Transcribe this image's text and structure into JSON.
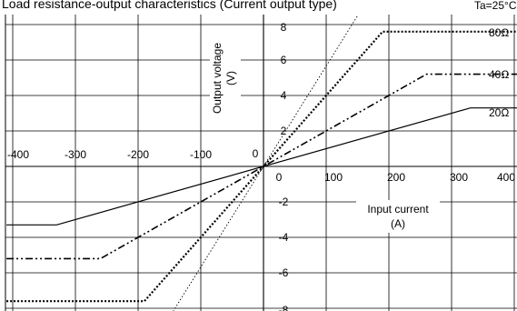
{
  "chart_data": {
    "type": "line",
    "title": "Load resistance-output characteristics (Current output type)",
    "condition": "Ta=25°C",
    "xlabel": "Input current",
    "xunit": "(A)",
    "ylabel": "Output voltage",
    "yunit": "(V)",
    "xlim": [
      -410,
      410
    ],
    "ylim": [
      -8,
      8
    ],
    "grid": true,
    "x_ticks": [
      {
        "value": -400,
        "label": "-400"
      },
      {
        "value": -300,
        "label": "-300"
      },
      {
        "value": -200,
        "label": "-200"
      },
      {
        "value": -100,
        "label": "-100"
      },
      {
        "value": 0,
        "label": "0"
      },
      {
        "value": 100,
        "label": "100"
      },
      {
        "value": 200,
        "label": "200"
      },
      {
        "value": 300,
        "label": "300"
      },
      {
        "value": 400,
        "label": "400"
      }
    ],
    "y_ticks": [
      {
        "value": 8,
        "label": "8"
      },
      {
        "value": 6,
        "label": "6"
      },
      {
        "value": 4,
        "label": "4"
      },
      {
        "value": 2,
        "label": "2"
      },
      {
        "value": 0,
        "label": "0"
      },
      {
        "value": -2,
        "label": "-2"
      },
      {
        "value": -4,
        "label": "-4"
      },
      {
        "value": -6,
        "label": "-6"
      },
      {
        "value": -8,
        "label": "-8"
      }
    ],
    "series": [
      {
        "name": "80Ω",
        "style": "dotted",
        "x": [
          -410,
          -190,
          190,
          410
        ],
        "y": [
          -7.6,
          -7.6,
          7.6,
          7.6
        ]
      },
      {
        "name": "40Ω",
        "style": "dash-dot",
        "x": [
          -410,
          -260,
          260,
          410
        ],
        "y": [
          -5.2,
          -5.2,
          5.2,
          5.2
        ]
      },
      {
        "name": "20Ω",
        "style": "solid",
        "x": [
          -410,
          -330,
          330,
          410
        ],
        "y": [
          -3.3,
          -3.3,
          3.3,
          3.3
        ]
      },
      {
        "name": "",
        "style": "thin-dotted",
        "x": [
          -150,
          150
        ],
        "y": [
          -8.5,
          8.5
        ]
      }
    ]
  }
}
